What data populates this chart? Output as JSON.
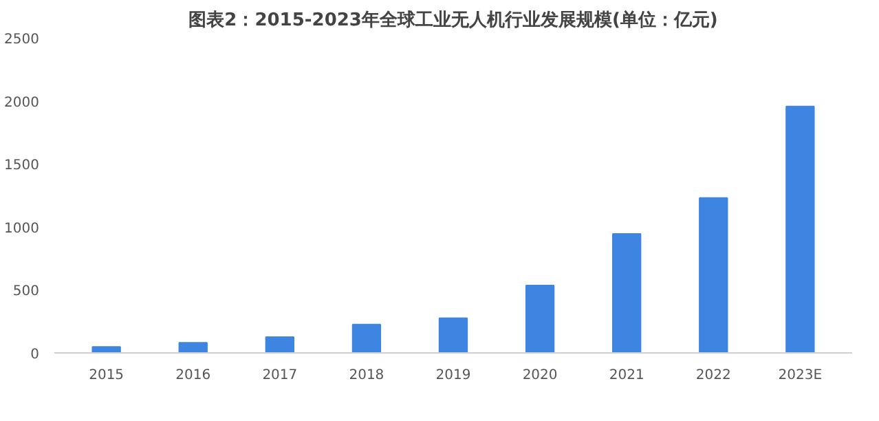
{
  "chart_data": {
    "type": "bar",
    "title": "图表2：2015-2023年全球工业无人机行业发展规模(单位：亿元)",
    "categories": [
      "2015",
      "2016",
      "2017",
      "2018",
      "2019",
      "2020",
      "2021",
      "2022",
      "2023E"
    ],
    "values": [
      48,
      80,
      125,
      225,
      275,
      535,
      945,
      1230,
      1955
    ],
    "color": "#3d85e0",
    "ylim": [
      0,
      2500
    ],
    "yticks": [
      0,
      500,
      1000,
      1500,
      2000,
      2500
    ],
    "grid": false
  }
}
